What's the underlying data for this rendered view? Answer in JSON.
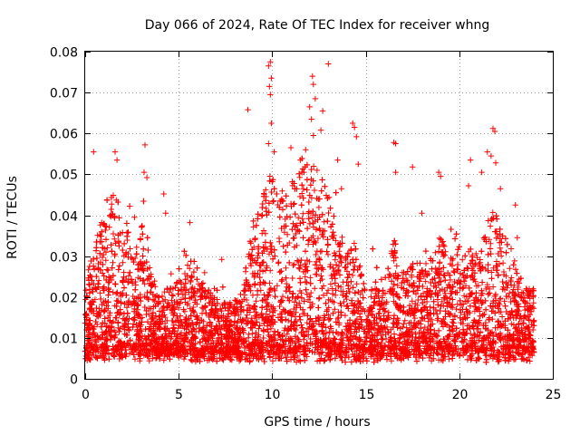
{
  "chart_data": {
    "type": "scatter",
    "title": "Day 066 of 2024, Rate Of TEC Index for receiver whng",
    "xlabel": "GPS time / hours",
    "ylabel": "ROTI / TECUs",
    "xlim": [
      0,
      25
    ],
    "ylim": [
      0,
      0.08
    ],
    "grid": true,
    "marker": "+",
    "color": "#ff0000",
    "x_ticks": [
      0,
      5,
      10,
      15,
      20,
      25
    ],
    "x_tick_labels": [
      "0",
      "5",
      "10",
      "15",
      "20",
      "25"
    ],
    "y_ticks": [
      0,
      0.01,
      0.02,
      0.03,
      0.04,
      0.05,
      0.06,
      0.07,
      0.08
    ],
    "y_tick_labels": [
      "0",
      "0.01",
      "0.02",
      "0.03",
      "0.04",
      "0.05",
      "0.06",
      "0.07",
      "0.08"
    ],
    "time_range_hours": [
      0,
      24
    ],
    "series": [
      {
        "name": "ROTI",
        "description": "Dense point cloud; baseline 0.005-0.02 across the day, elevated activity near 1-3 h and 9-14 h, sparse outliers.",
        "points": [
          [
            0.45,
            0.0555
          ],
          [
            1.6,
            0.0555
          ],
          [
            1.7,
            0.0535
          ],
          [
            3.2,
            0.0572
          ],
          [
            3.15,
            0.0505
          ],
          [
            3.3,
            0.0492
          ],
          [
            4.2,
            0.0452
          ],
          [
            4.3,
            0.0405
          ],
          [
            5.6,
            0.0382
          ],
          [
            7.3,
            0.0292
          ],
          [
            8.7,
            0.0658
          ],
          [
            9.8,
            0.0765
          ],
          [
            9.9,
            0.0775
          ],
          [
            9.95,
            0.0735
          ],
          [
            9.85,
            0.0715
          ],
          [
            9.9,
            0.0695
          ],
          [
            9.95,
            0.0625
          ],
          [
            9.8,
            0.0575
          ],
          [
            10.1,
            0.0555
          ],
          [
            11.0,
            0.0565
          ],
          [
            11.5,
            0.0535
          ],
          [
            11.7,
            0.0505
          ],
          [
            12.0,
            0.0665
          ],
          [
            12.1,
            0.0635
          ],
          [
            12.15,
            0.074
          ],
          [
            12.2,
            0.072
          ],
          [
            12.3,
            0.0685
          ],
          [
            12.2,
            0.0595
          ],
          [
            12.6,
            0.0608
          ],
          [
            12.7,
            0.0655
          ],
          [
            13.0,
            0.077
          ],
          [
            13.5,
            0.0535
          ],
          [
            13.7,
            0.0465
          ],
          [
            14.3,
            0.0625
          ],
          [
            14.4,
            0.0615
          ],
          [
            14.5,
            0.0592
          ],
          [
            14.6,
            0.0525
          ],
          [
            16.5,
            0.0578
          ],
          [
            16.6,
            0.0575
          ],
          [
            16.6,
            0.0505
          ],
          [
            17.5,
            0.0518
          ],
          [
            18.0,
            0.0405
          ],
          [
            18.9,
            0.0505
          ],
          [
            19.0,
            0.0495
          ],
          [
            20.5,
            0.0472
          ],
          [
            20.6,
            0.0535
          ],
          [
            21.2,
            0.0505
          ],
          [
            21.5,
            0.0555
          ],
          [
            21.7,
            0.0545
          ],
          [
            21.8,
            0.0612
          ],
          [
            21.9,
            0.0605
          ],
          [
            21.95,
            0.0528
          ],
          [
            22.2,
            0.0465
          ],
          [
            23.0,
            0.0425
          ],
          [
            23.1,
            0.0345
          ]
        ]
      }
    ]
  }
}
